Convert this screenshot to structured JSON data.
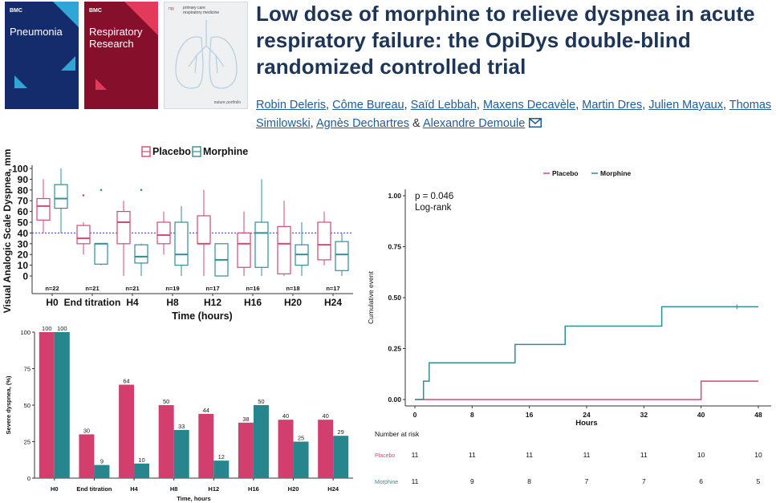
{
  "covers": [
    {
      "publisher": "BMC",
      "name_lines": [
        "Pneumonia"
      ],
      "color": "#152c6c"
    },
    {
      "publisher": "BMC",
      "name_lines": [
        "Respiratory",
        "Research"
      ],
      "color": "#86102c"
    },
    {
      "publisher": "npj",
      "name_lines": [
        "primary care",
        "respiratory medicine"
      ],
      "footer": "nature portfolio",
      "color": "#eef0f2"
    }
  ],
  "article": {
    "title": "Low dose of morphine to relieve dyspnea in acute respiratory failure: the OpiDys double-blind randomized controlled trial",
    "authors": [
      {
        "name": "Robin Deleris",
        "sep": ", "
      },
      {
        "name": "Côme Bureau",
        "sep": ", "
      },
      {
        "name": "Saïd Lebbah",
        "sep": ", "
      },
      {
        "name": "Maxens Decavèle",
        "sep": ", "
      },
      {
        "name": "Martin Dres",
        "sep": ", "
      },
      {
        "name": "Julien Mayaux",
        "sep": ", "
      },
      {
        "name": "Thomas Similowski",
        "sep": ", "
      },
      {
        "name": "Agnès Dechartres",
        "sep": " & "
      },
      {
        "name": "Alexandre Demoule",
        "sep": ""
      }
    ],
    "mail_icon": "envelope-icon"
  },
  "colors": {
    "placebo": "#d24a73",
    "morphine": "#2f8f96",
    "bar_placebo": "#d23f6f",
    "bar_morphine": "#26858d",
    "title": "#1d3557"
  },
  "chart_data": [
    {
      "type": "box",
      "title": "",
      "ylabel": "Visual Analogic Scale Dyspnea, mm",
      "xlabel": "Time (hours)",
      "ylim": [
        0,
        100
      ],
      "yticks": [
        0,
        10,
        20,
        30,
        40,
        50,
        60,
        70,
        80,
        90,
        100
      ],
      "reference_line": 40,
      "legend": {
        "placement": "top",
        "entries": [
          "Placebo",
          "Morphine"
        ]
      },
      "categories": [
        "H0",
        "End titration",
        "H4",
        "H8",
        "H12",
        "H16",
        "H20",
        "H24"
      ],
      "n_labels": [
        "n=22",
        "n=21",
        "n=21",
        "n=19",
        "n=17",
        "n=16",
        "n=18",
        "n=17"
      ],
      "series": [
        {
          "name": "Placebo",
          "boxes": [
            {
              "min": 40,
              "q1": 52,
              "median": 65,
              "q3": 72,
              "max": 90
            },
            {
              "min": 20,
              "q1": 30,
              "median": 35,
              "q3": 47,
              "max": 50,
              "outliers": [
                75
              ]
            },
            {
              "min": 0,
              "q1": 30,
              "median": 50,
              "q3": 60,
              "max": 70
            },
            {
              "min": 20,
              "q1": 30,
              "median": 38,
              "q3": 50,
              "max": 60
            },
            {
              "min": 0,
              "q1": 30,
              "median": 30,
              "q3": 56,
              "max": 80
            },
            {
              "min": 0,
              "q1": 8,
              "median": 30,
              "q3": 40,
              "max": 60
            },
            {
              "min": 0,
              "q1": 2,
              "median": 30,
              "q3": 46,
              "max": 70
            },
            {
              "min": 10,
              "q1": 15,
              "median": 29,
              "q3": 50,
              "max": 60
            }
          ]
        },
        {
          "name": "Morphine",
          "boxes": [
            {
              "min": 40,
              "q1": 63,
              "median": 72,
              "q3": 85,
              "max": 100
            },
            {
              "min": 10,
              "q1": 11,
              "median": 30,
              "q3": 30,
              "max": 30,
              "outliers": [
                80
              ]
            },
            {
              "min": 0,
              "q1": 12,
              "median": 18,
              "q3": 29,
              "max": 30,
              "outliers": [
                80
              ]
            },
            {
              "min": 0,
              "q1": 10,
              "median": 20,
              "q3": 50,
              "max": 65
            },
            {
              "min": 0,
              "q1": 0,
              "median": 15,
              "q3": 30,
              "max": 30
            },
            {
              "min": 0,
              "q1": 8,
              "median": 40,
              "q3": 50,
              "max": 90
            },
            {
              "min": 0,
              "q1": 10,
              "median": 20,
              "q3": 29,
              "max": 50
            },
            {
              "min": 0,
              "q1": 5,
              "median": 20,
              "q3": 32,
              "max": 40
            }
          ]
        }
      ]
    },
    {
      "type": "bar",
      "title": "",
      "ylabel": "Severe dyspnea, (%)",
      "xlabel": "Time, hours",
      "ylim": [
        0,
        100
      ],
      "yticks": [
        0,
        25,
        50,
        75,
        100
      ],
      "categories": [
        "H0",
        "End titration",
        "H4",
        "H8",
        "H12",
        "H16",
        "H20",
        "H24"
      ],
      "series": [
        {
          "name": "Placebo",
          "values": [
            100,
            30,
            64,
            50,
            44,
            38,
            40,
            40
          ]
        },
        {
          "name": "Morphine",
          "values": [
            100,
            9,
            10,
            33,
            12,
            50,
            25,
            29
          ]
        }
      ]
    },
    {
      "type": "line",
      "subtype": "step",
      "title": "",
      "ylabel": "Cumulative event",
      "xlabel": "Hours",
      "xlim": [
        0,
        48
      ],
      "ylim": [
        0,
        1
      ],
      "xticks": [
        0,
        8,
        16,
        24,
        32,
        40,
        48
      ],
      "yticks": [
        "0.00",
        "0.25",
        "0.50",
        "0.75",
        "1.00"
      ],
      "legend": {
        "placement": "top",
        "entries": [
          "Placebo",
          "Morphine"
        ]
      },
      "annotation": [
        "p = 0.046",
        "Log-rank"
      ],
      "series": [
        {
          "name": "Placebo",
          "x": [
            0,
            40,
            48
          ],
          "y": [
            0,
            0.09,
            0.09
          ],
          "censor_x": []
        },
        {
          "name": "Morphine",
          "x": [
            0,
            1.2,
            2,
            14,
            21,
            34.5,
            48
          ],
          "y": [
            0,
            0.09,
            0.18,
            0.27,
            0.36,
            0.455,
            0.455
          ],
          "censor_x": [
            45
          ]
        }
      ],
      "risk_table": {
        "title": "Number at risk",
        "times": [
          0,
          8,
          16,
          24,
          32,
          40,
          48
        ],
        "rows": [
          {
            "name": "Placebo",
            "values": [
              11,
              11,
              11,
              11,
              11,
              10,
              10
            ]
          },
          {
            "name": "Morphine",
            "values": [
              11,
              9,
              8,
              7,
              7,
              6,
              5
            ]
          }
        ]
      }
    }
  ]
}
